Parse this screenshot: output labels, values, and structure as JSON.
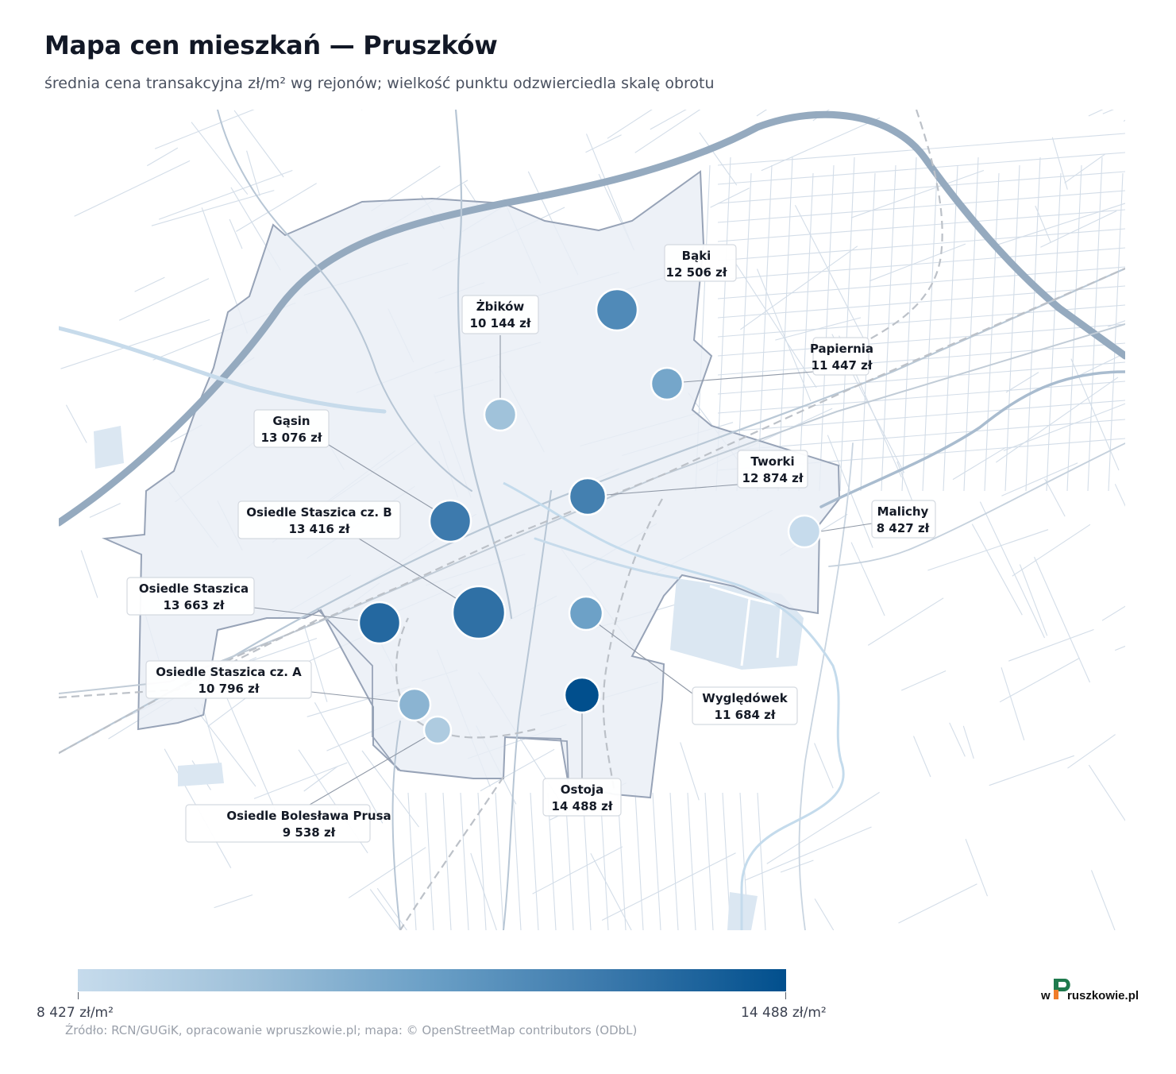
{
  "title": "Mapa cen mieszkań — Pruszków",
  "subtitle": "średnia cena transakcyjna zł/m² wg rejonów; wielkość punktu odzwierciedla skalę obrotu",
  "legend": {
    "min_label": "8 427 zł/m²",
    "max_label": "14 488 zł/m²",
    "min_value": 8427,
    "max_value": 14488,
    "color_low": "#c6dbec",
    "color_high": "#014f8d"
  },
  "source": "Źródło: RCN/GUGiK, opracowanie wpruszkowie.pl; mapa: © OpenStreetMap contributors (ODbL)",
  "logo": {
    "w": "w",
    "p": "P",
    "rest": "ruszkowie.pl"
  },
  "districts": [
    {
      "name": "Bąki",
      "price": 12506,
      "price_label": "12 506 zł"
    },
    {
      "name": "Żbików",
      "price": 10144,
      "price_label": "10 144 zł"
    },
    {
      "name": "Papiernia",
      "price": 11447,
      "price_label": "11 447 zł"
    },
    {
      "name": "Gąsin",
      "price": 13076,
      "price_label": "13 076 zł"
    },
    {
      "name": "Tworki",
      "price": 12874,
      "price_label": "12 874 zł"
    },
    {
      "name": "Malichy",
      "price": 8427,
      "price_label": "8 427 zł"
    },
    {
      "name": "Osiedle Staszica cz. B",
      "price": 13416,
      "price_label": "13 416 zł"
    },
    {
      "name": "Osiedle Staszica",
      "price": 13663,
      "price_label": "13 663 zł"
    },
    {
      "name": "Wyględówek",
      "price": 11684,
      "price_label": "11 684 zł"
    },
    {
      "name": "Osiedle Staszica cz. A",
      "price": 10796,
      "price_label": "10 796 zł"
    },
    {
      "name": "Ostoja",
      "price": 14488,
      "price_label": "14 488 zł"
    },
    {
      "name": "Osiedle Bolesława Prusa",
      "price": 9538,
      "price_label": "9 538 zł"
    }
  ]
}
